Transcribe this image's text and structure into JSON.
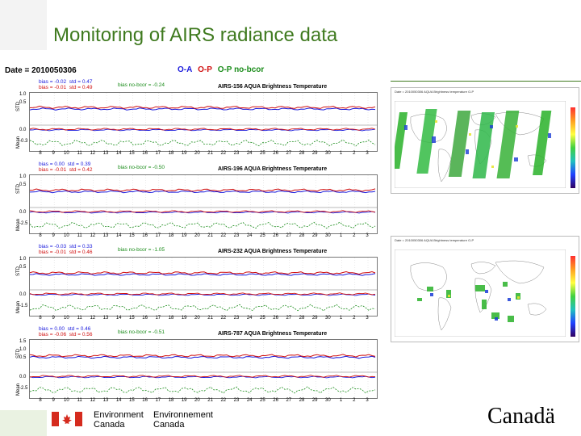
{
  "slide": {
    "title": "Monitoring of AIRS radiance data"
  },
  "left": {
    "date_label": "Date = 2010050306",
    "legend": [
      {
        "label": "O-A",
        "color": "#1a1adc"
      },
      {
        "label": "O-P",
        "color": "#d01010"
      },
      {
        "label": "O-P no-bcor",
        "color": "#1a8c1a"
      }
    ],
    "x_ticks": [
      "8",
      "9",
      "10",
      "11",
      "12",
      "13",
      "14",
      "15",
      "16",
      "17",
      "18",
      "19",
      "20",
      "21",
      "22",
      "23",
      "24",
      "25",
      "26",
      "27",
      "28",
      "29",
      "30",
      "1",
      "2",
      "3"
    ],
    "panels": [
      {
        "title": "AIRS-156  AQUA Brightness Temperature",
        "bias_oa": "bias = -0.02",
        "std_oa": "std = 0.47",
        "bias_op": "bias = -0.01",
        "std_op": "std = 0.49",
        "nobcor": "bias no-bcor = -0.24",
        "std_ticks": [
          "1.0",
          "0.5"
        ],
        "mean_ticks": [
          "0.0",
          "-0.3"
        ]
      },
      {
        "title": "AIRS-196  AQUA Brightness Temperature",
        "bias_oa": "bias = 0.00",
        "std_oa": "std = 0.39",
        "bias_op": "bias = -0.01",
        "std_op": "std = 0.42",
        "nobcor": "bias no-bcor = -0.50",
        "std_ticks": [
          "1.0",
          "0.5"
        ],
        "mean_ticks": [
          "0.0",
          "-2.5"
        ]
      },
      {
        "title": "AIRS-232  AQUA Brightness Temperature",
        "bias_oa": "bias = -0.03",
        "std_oa": "std = 0.33",
        "bias_op": "bias = -0.01",
        "std_op": "std = 0.46",
        "nobcor": "bias no-bcor = -1.05",
        "std_ticks": [
          "1.0",
          "0.5"
        ],
        "mean_ticks": [
          "0.0",
          "-1.5"
        ]
      },
      {
        "title": "AIRS-787  AQUA Brightness Temperature",
        "bias_oa": "bias = 0.00",
        "std_oa": "std = 0.46",
        "bias_op": "bias = -0.06",
        "std_op": "std = 0.56",
        "nobcor": "bias no-bcor = -0.51",
        "std_ticks": [
          "1.5",
          "1.0",
          "0.5"
        ],
        "mean_ticks": [
          "0.0",
          "-2.5"
        ]
      }
    ],
    "axis_std": "STD",
    "axis_mean": "Mean"
  },
  "maps": [
    {
      "header1": "Date = 2010050306",
      "header2": "AQUA Brightness temperature O-P"
    },
    {
      "header1": "Date = 2010050306",
      "header2": "AQUA Brightness temperature O-P"
    }
  ],
  "footer": {
    "env_en_1": "Environment",
    "env_en_2": "Canada",
    "env_fr_1": "Environnement",
    "env_fr_2": "Canada",
    "wordmark": "Canadä"
  },
  "colors": {
    "title_green": "#3f7a1f",
    "oa_blue": "#1a1adc",
    "op_red": "#d01010",
    "nobcor_green": "#1a8c1a"
  }
}
